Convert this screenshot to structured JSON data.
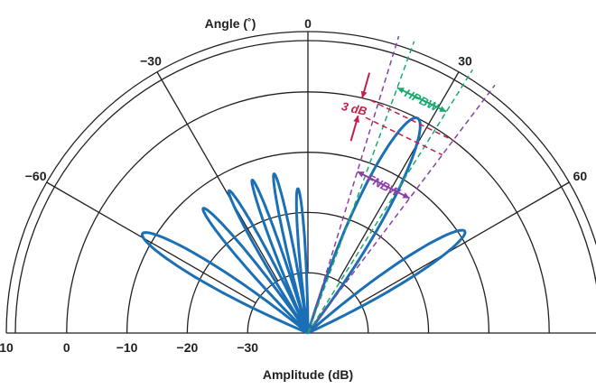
{
  "chart_data": {
    "type": "polar",
    "title_angle": "Angle (˚)",
    "xlabel": "Amplitude (dB)",
    "angle_ticks": [
      {
        "value": 0,
        "label": "0"
      },
      {
        "value": -30,
        "label": "−30"
      },
      {
        "value": 30,
        "label": "30"
      },
      {
        "value": -60,
        "label": "−60"
      },
      {
        "value": 60,
        "label": "60"
      }
    ],
    "radial_ticks": [
      {
        "value": 10,
        "label": "10"
      },
      {
        "value": 0,
        "label": "0"
      },
      {
        "value": -10,
        "label": "−10"
      },
      {
        "value": -20,
        "label": "−20"
      },
      {
        "value": -30,
        "label": "−30"
      }
    ],
    "angle_range": [
      -90,
      90
    ],
    "radial_range_db": [
      -40,
      10
    ],
    "series": [
      {
        "lobes": [
          {
            "center_deg": 27,
            "peak_db": 0,
            "halfwidth_deg": 10
          },
          {
            "center_deg": 57,
            "peak_db": -9,
            "halfwidth_deg": 8
          },
          {
            "center_deg": -4,
            "peak_db": -16,
            "halfwidth_deg": 3.5
          },
          {
            "center_deg": -12,
            "peak_db": -13,
            "halfwidth_deg": 3.5
          },
          {
            "center_deg": -20,
            "peak_db": -13,
            "halfwidth_deg": 3.5
          },
          {
            "center_deg": -29,
            "peak_db": -13,
            "halfwidth_deg": 4
          },
          {
            "center_deg": -40,
            "peak_db": -13,
            "halfwidth_deg": 5
          },
          {
            "center_deg": -59,
            "peak_db": -8,
            "halfwidth_deg": 8
          }
        ]
      }
    ],
    "annotations": {
      "three_db": "3 dB",
      "hpbw": "HPBW",
      "fnbw": "FNBW"
    },
    "colors": {
      "pattern": "#1a6fb5",
      "grid": "#231f20",
      "hpbw": "#1aaa6e",
      "fnbw": "#8b3fa8",
      "three_db": "#c21f4a"
    },
    "grid": true
  }
}
